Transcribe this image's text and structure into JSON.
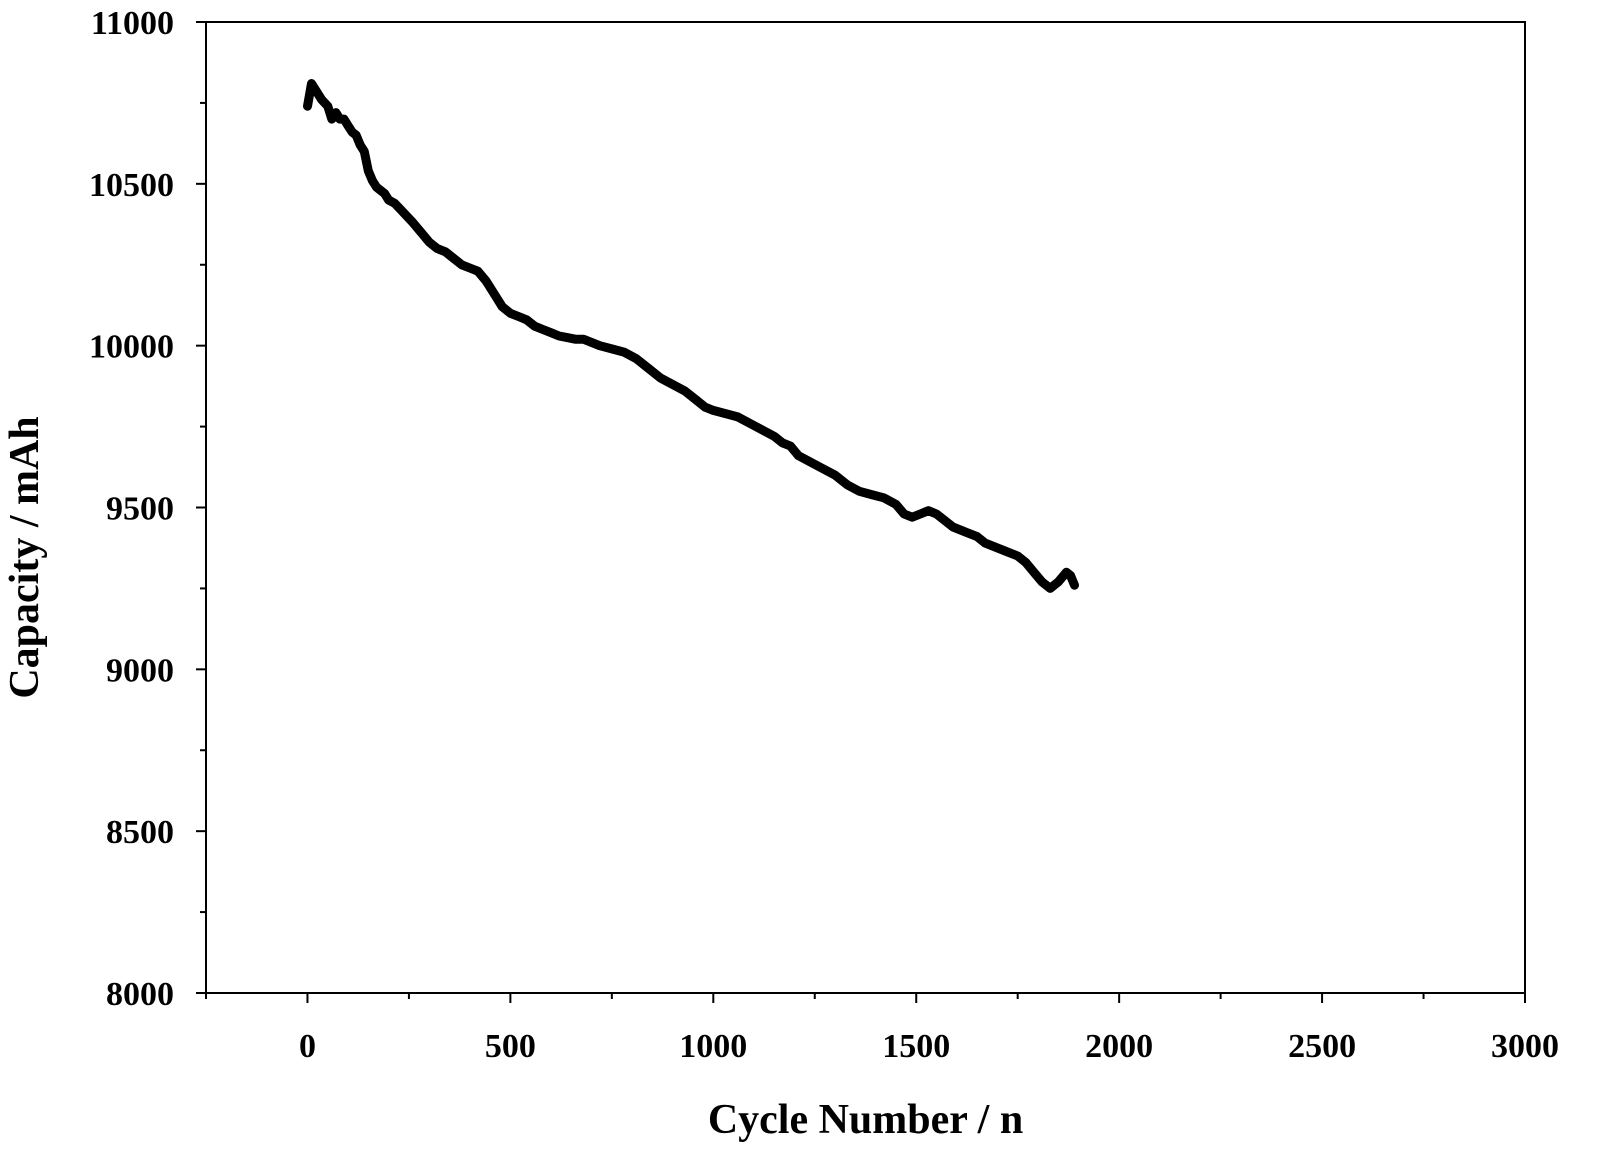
{
  "chart_data": {
    "type": "line",
    "title": "",
    "xlabel": "Cycle Number / n",
    "ylabel": "Capacity / mAh",
    "xlim": [
      -250,
      3000
    ],
    "ylim": [
      8000,
      11000
    ],
    "x_ticks": [
      0,
      500,
      1000,
      1500,
      2000,
      2500,
      3000
    ],
    "y_ticks": [
      8000,
      8500,
      9000,
      9500,
      10000,
      10500,
      11000
    ],
    "x_tick_labels": [
      "0",
      "500",
      "1000",
      "1500",
      "2000",
      "2500",
      "3000"
    ],
    "y_tick_labels": [
      "8000",
      "8500",
      "9000",
      "9500",
      "10000",
      "10500",
      "11000"
    ],
    "grid": false,
    "legend": "none",
    "series": [
      {
        "color": "#000000",
        "x": [
          0,
          10,
          20,
          35,
          50,
          60,
          70,
          80,
          90,
          100,
          110,
          120,
          130,
          140,
          150,
          160,
          170,
          180,
          190,
          200,
          215,
          230,
          245,
          260,
          280,
          300,
          320,
          340,
          360,
          380,
          400,
          420,
          440,
          460,
          480,
          500,
          520,
          540,
          560,
          580,
          600,
          620,
          640,
          660,
          680,
          700,
          720,
          750,
          780,
          810,
          840,
          870,
          900,
          930,
          960,
          980,
          1000,
          1030,
          1060,
          1090,
          1120,
          1150,
          1170,
          1190,
          1210,
          1240,
          1270,
          1300,
          1330,
          1360,
          1390,
          1420,
          1450,
          1470,
          1490,
          1510,
          1530,
          1550,
          1570,
          1590,
          1610,
          1630,
          1650,
          1670,
          1690,
          1710,
          1730,
          1750,
          1770,
          1790,
          1810,
          1830,
          1850,
          1870,
          1880,
          1890
        ],
        "y": [
          10740,
          10810,
          10790,
          10760,
          10740,
          10700,
          10720,
          10700,
          10700,
          10680,
          10660,
          10650,
          10620,
          10600,
          10540,
          10510,
          10490,
          10480,
          10470,
          10450,
          10440,
          10420,
          10400,
          10380,
          10350,
          10320,
          10300,
          10290,
          10270,
          10250,
          10240,
          10230,
          10200,
          10160,
          10120,
          10100,
          10090,
          10080,
          10060,
          10050,
          10040,
          10030,
          10025,
          10020,
          10020,
          10010,
          10000,
          9990,
          9980,
          9960,
          9930,
          9900,
          9880,
          9860,
          9830,
          9810,
          9800,
          9790,
          9780,
          9760,
          9740,
          9720,
          9700,
          9690,
          9660,
          9640,
          9620,
          9600,
          9570,
          9550,
          9540,
          9530,
          9510,
          9480,
          9470,
          9480,
          9490,
          9480,
          9460,
          9440,
          9430,
          9420,
          9410,
          9390,
          9380,
          9370,
          9360,
          9350,
          9330,
          9300,
          9270,
          9250,
          9270,
          9300,
          9290,
          9260
        ]
      }
    ]
  }
}
